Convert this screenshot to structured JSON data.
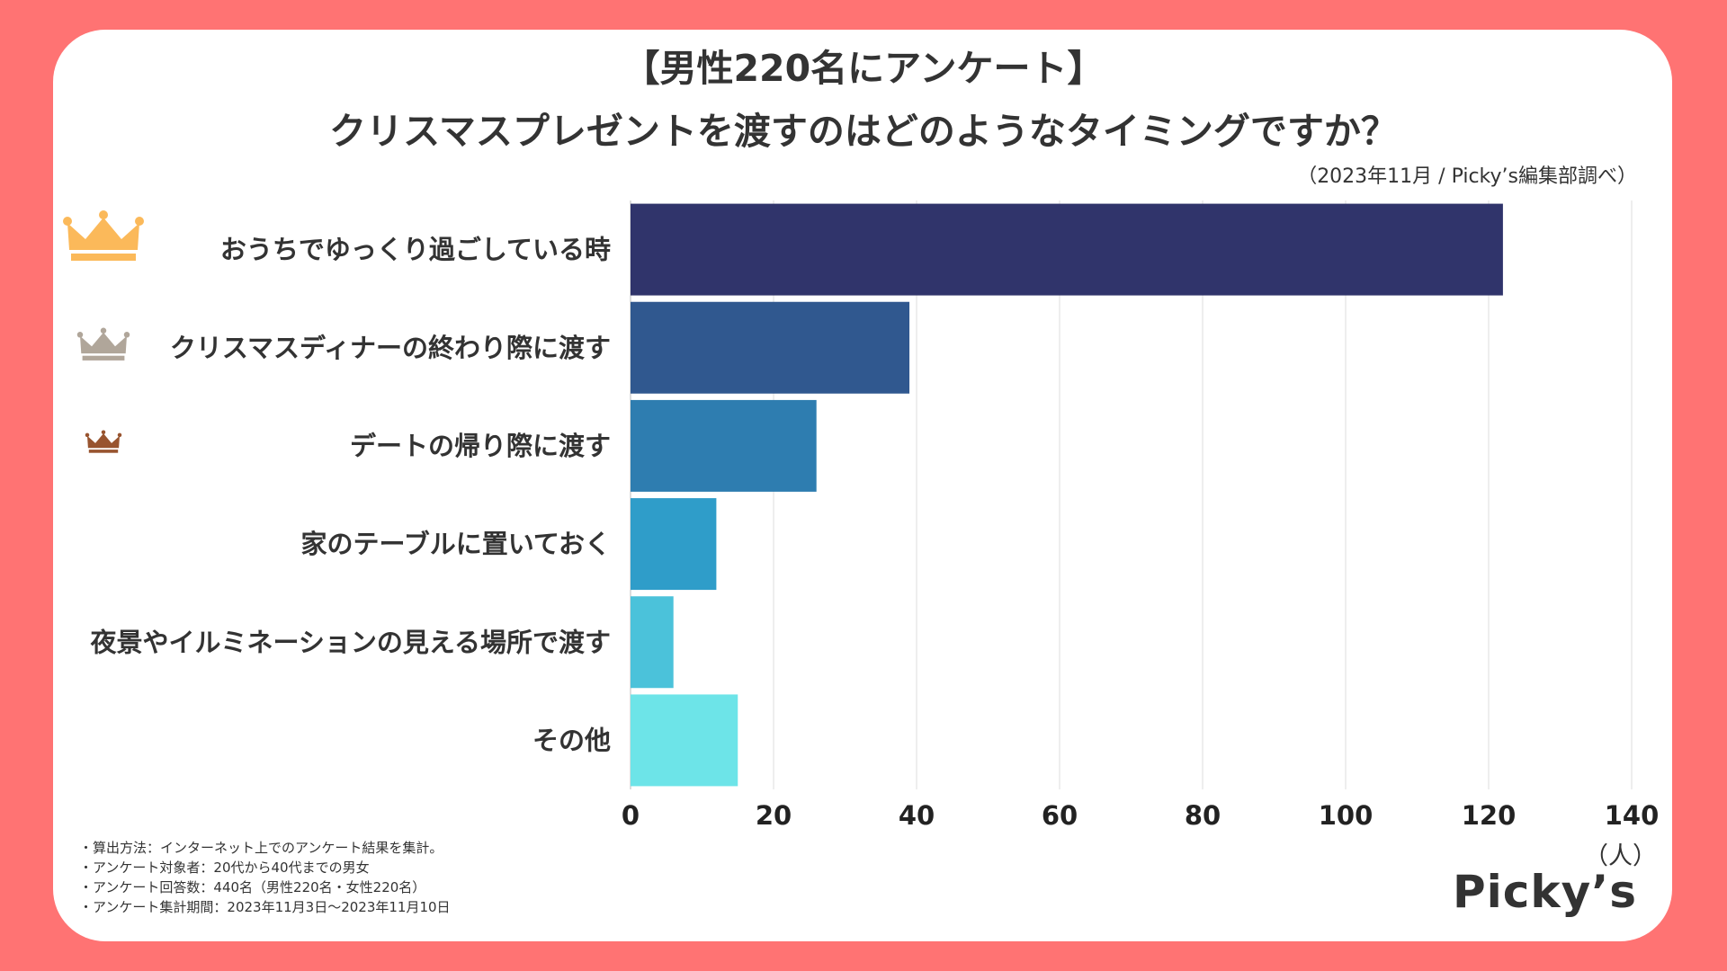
{
  "header": {
    "title_line1": "【男性220名にアンケート】",
    "title_line2": "クリスマスプレゼントを渡すのはどのようなタイミングですか？",
    "source": "（2023年11月 / Picky’s編集部調べ）"
  },
  "chart_data": {
    "type": "bar",
    "orientation": "horizontal",
    "title": "クリスマスプレゼントを渡すのはどのようなタイミングですか？",
    "categories": [
      "おうちでゆっくり過ごしている時",
      "クリスマスディナーの終わり際に渡す",
      "デートの帰り際に渡す",
      "家のテーブルに置いておく",
      "夜景やイルミネーションの見える場所で渡す",
      "その他"
    ],
    "values": [
      122,
      39,
      26,
      12,
      6,
      15
    ],
    "bar_colors": [
      "#30346b",
      "#30588f",
      "#2e7db0",
      "#2f9dc9",
      "#4bc2da",
      "#6de4e8"
    ],
    "xlim": [
      0,
      140
    ],
    "xticks": [
      0,
      20,
      40,
      60,
      80,
      100,
      120,
      140
    ],
    "tick_labels": [
      "0",
      "20",
      "40",
      "60",
      "80",
      "100",
      "120",
      "140"
    ],
    "xlabel": "（人）",
    "grid": true,
    "rank_icons": [
      {
        "rank": 1,
        "name": "gold-crown-icon",
        "color": "#fbb95a"
      },
      {
        "rank": 2,
        "name": "silver-crown-icon",
        "color": "#b0a69a"
      },
      {
        "rank": 3,
        "name": "bronze-crown-icon",
        "color": "#98542f"
      }
    ]
  },
  "notes": [
    "・算出方法：インターネット上でのアンケート結果を集計。",
    "・アンケート対象者：20代から40代までの男女",
    "・アンケート回答数：440名（男性220名・女性220名）",
    "・アンケート集計期間：2023年11月3日〜2023年11月10日"
  ],
  "logo": {
    "text": "Picky’s"
  },
  "colors": {
    "background": "#ff7373",
    "card": "#ffffff",
    "text": "#333333"
  }
}
